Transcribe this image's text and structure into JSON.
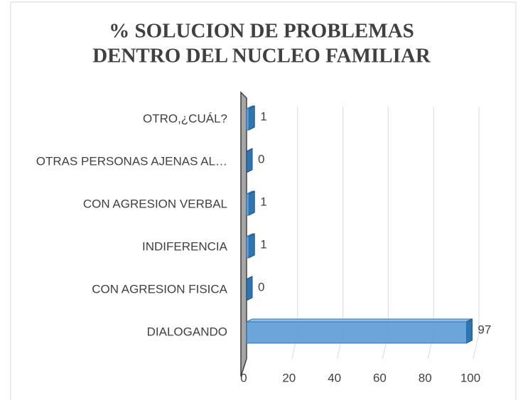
{
  "chart_data": {
    "type": "bar",
    "orientation": "horizontal",
    "title": [
      "% SOLUCION DE PROBLEMAS",
      "DENTRO DEL NUCLEO FAMILIAR"
    ],
    "categories": [
      "OTRO,¿CUÁL?",
      "OTRAS PERSONAS AJENAS AL…",
      "CON AGRESION VERBAL",
      "INDIFERENCIA",
      "CON AGRESION FISICA",
      "DIALOGANDO"
    ],
    "values": [
      1,
      0,
      1,
      1,
      0,
      97
    ],
    "color": "#5b9bd5",
    "xlim": [
      0,
      100
    ],
    "xticks": [
      0,
      20,
      40,
      60,
      80,
      100
    ],
    "grid": true
  }
}
